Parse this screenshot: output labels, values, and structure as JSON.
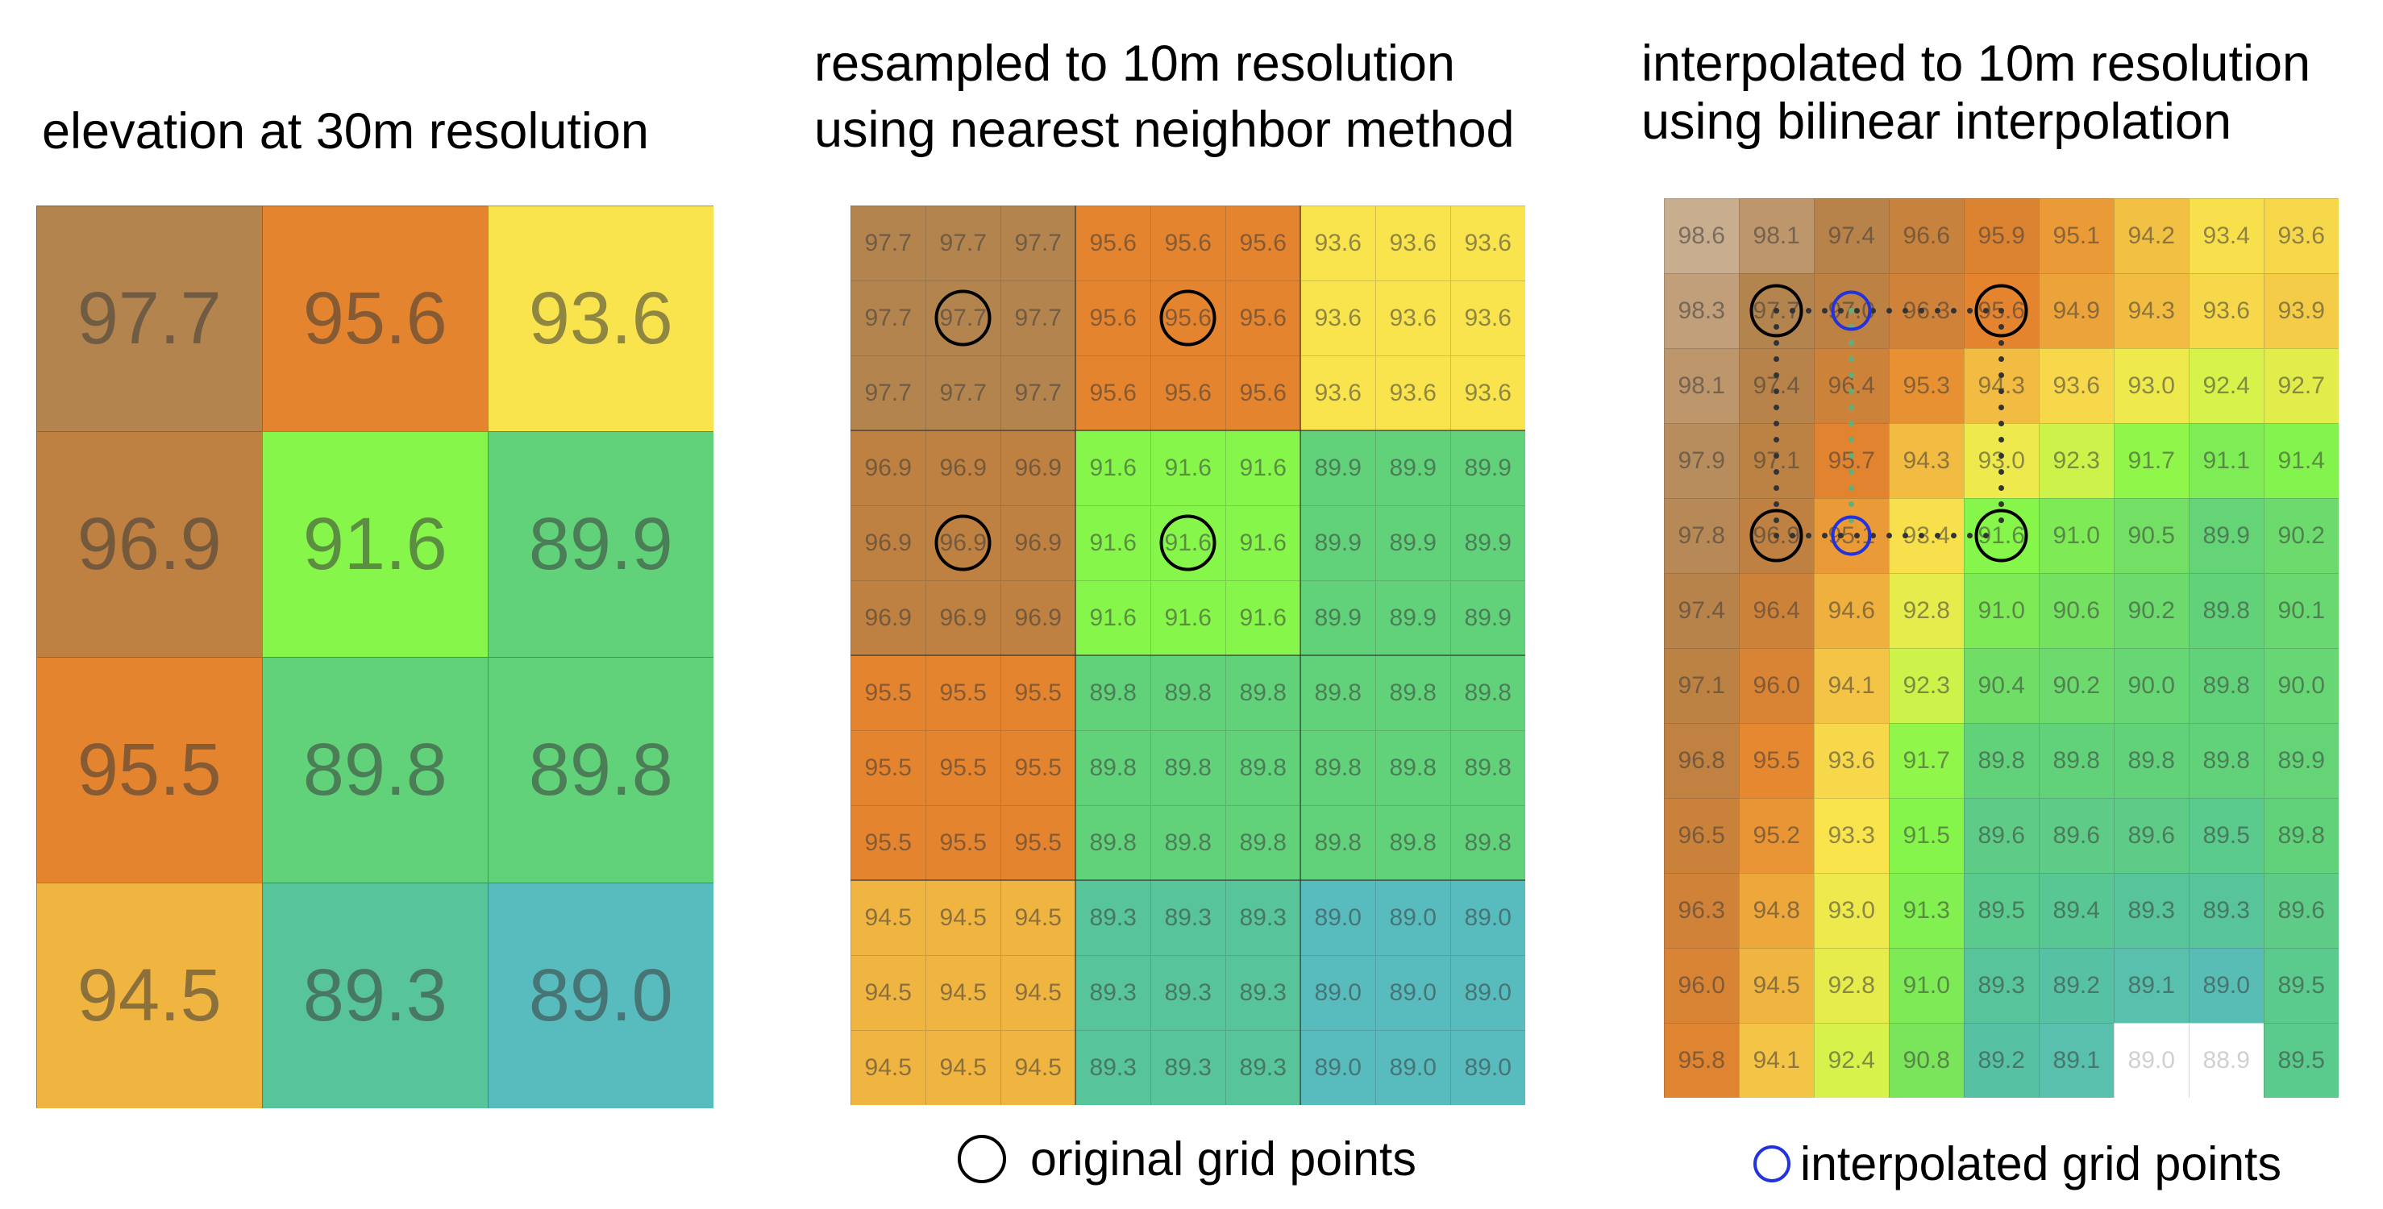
{
  "titles": {
    "left": "elevation at 30m resolution",
    "middle_line1": "resampled to 10m resolution",
    "middle_line2": "using nearest neighbor method",
    "right_line1": "interpolated to 10m resolution",
    "right_line2": "using bilinear interpolation"
  },
  "legend": {
    "original": "original grid points",
    "interpolated": "interpolated grid points",
    "original_color": "#000000",
    "interpolated_color": "#2233dd"
  },
  "grid_30m": [
    [
      "97.7",
      "95.6",
      "93.6"
    ],
    [
      "96.9",
      "91.6",
      "89.9"
    ],
    [
      "95.5",
      "89.8",
      "89.8"
    ],
    [
      "94.5",
      "89.3",
      "89.0"
    ]
  ],
  "grid_10m_nearest": [
    [
      "97.7",
      "97.7",
      "97.7",
      "95.6",
      "95.6",
      "95.6",
      "93.6",
      "93.6",
      "93.6"
    ],
    [
      "97.7",
      "97.7",
      "97.7",
      "95.6",
      "95.6",
      "95.6",
      "93.6",
      "93.6",
      "93.6"
    ],
    [
      "97.7",
      "97.7",
      "97.7",
      "95.6",
      "95.6",
      "95.6",
      "93.6",
      "93.6",
      "93.6"
    ],
    [
      "96.9",
      "96.9",
      "96.9",
      "91.6",
      "91.6",
      "91.6",
      "89.9",
      "89.9",
      "89.9"
    ],
    [
      "96.9",
      "96.9",
      "96.9",
      "91.6",
      "91.6",
      "91.6",
      "89.9",
      "89.9",
      "89.9"
    ],
    [
      "96.9",
      "96.9",
      "96.9",
      "91.6",
      "91.6",
      "91.6",
      "89.9",
      "89.9",
      "89.9"
    ],
    [
      "95.5",
      "95.5",
      "95.5",
      "89.8",
      "89.8",
      "89.8",
      "89.8",
      "89.8",
      "89.8"
    ],
    [
      "95.5",
      "95.5",
      "95.5",
      "89.8",
      "89.8",
      "89.8",
      "89.8",
      "89.8",
      "89.8"
    ],
    [
      "95.5",
      "95.5",
      "95.5",
      "89.8",
      "89.8",
      "89.8",
      "89.8",
      "89.8",
      "89.8"
    ],
    [
      "94.5",
      "94.5",
      "94.5",
      "89.3",
      "89.3",
      "89.3",
      "89.0",
      "89.0",
      "89.0"
    ],
    [
      "94.5",
      "94.5",
      "94.5",
      "89.3",
      "89.3",
      "89.3",
      "89.0",
      "89.0",
      "89.0"
    ],
    [
      "94.5",
      "94.5",
      "94.5",
      "89.3",
      "89.3",
      "89.3",
      "89.0",
      "89.0",
      "89.0"
    ]
  ],
  "grid_10m_bilinear": [
    [
      "98.6",
      "98.1",
      "97.4",
      "96.6",
      "95.9",
      "95.1",
      "94.2",
      "93.4",
      "93.6"
    ],
    [
      "98.3",
      "97.7",
      "97.0",
      "96.3",
      "95.6",
      "94.9",
      "94.3",
      "93.6",
      "93.9"
    ],
    [
      "98.1",
      "97.4",
      "96.4",
      "95.3",
      "94.3",
      "93.6",
      "93.0",
      "92.4",
      "92.7"
    ],
    [
      "97.9",
      "97.1",
      "95.7",
      "94.3",
      "93.0",
      "92.3",
      "91.7",
      "91.1",
      "91.4"
    ],
    [
      "97.8",
      "96.9",
      "95.1",
      "93.4",
      "91.6",
      "91.0",
      "90.5",
      "89.9",
      "90.2"
    ],
    [
      "97.4",
      "96.4",
      "94.6",
      "92.8",
      "91.0",
      "90.6",
      "90.2",
      "89.8",
      "90.1"
    ],
    [
      "97.1",
      "96.0",
      "94.1",
      "92.3",
      "90.4",
      "90.2",
      "90.0",
      "89.8",
      "90.0"
    ],
    [
      "96.8",
      "95.5",
      "93.6",
      "91.7",
      "89.8",
      "89.8",
      "89.8",
      "89.8",
      "89.9"
    ],
    [
      "96.5",
      "95.2",
      "93.3",
      "91.5",
      "89.6",
      "89.6",
      "89.6",
      "89.5",
      "89.8"
    ],
    [
      "96.3",
      "94.8",
      "93.0",
      "91.3",
      "89.5",
      "89.4",
      "89.3",
      "89.3",
      "89.6"
    ],
    [
      "96.0",
      "94.5",
      "92.8",
      "91.0",
      "89.3",
      "89.2",
      "89.1",
      "89.0",
      "89.5"
    ],
    [
      "95.8",
      "94.1",
      "92.4",
      "90.8",
      "89.2",
      "89.1",
      "89.0",
      "88.9",
      "89.5"
    ]
  ],
  "colors": {
    "c977": "#b4844f",
    "c969": "#be8141",
    "c956": "#e5842e",
    "c955": "#e5842e",
    "c945": "#f0b440",
    "c936": "#f9e44e",
    "c916": "#86f74a",
    "c899": "#62d27a",
    "c898": "#62d27a",
    "c893": "#57c49a",
    "c890": "#58bcbe",
    "light_tan": "#c8ad8f",
    "white": "#ffffff"
  }
}
